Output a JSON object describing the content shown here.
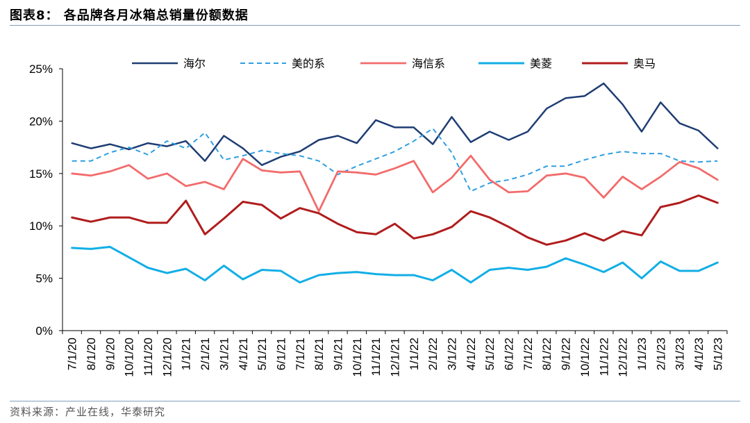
{
  "figure": {
    "title": "图表8：  各品牌各月冰箱总销量份额数据",
    "source": "资料来源：产业在线，华泰研究"
  },
  "chart_data": {
    "type": "line",
    "title": "",
    "xlabel": "",
    "ylabel": "",
    "ylim": [
      0,
      25
    ],
    "y_ticks": [
      "0%",
      "5%",
      "10%",
      "15%",
      "20%",
      "25%"
    ],
    "grid": false,
    "legend_position": "top",
    "categories": [
      "7/1/20",
      "8/1/20",
      "9/1/20",
      "10/1/20",
      "11/1/20",
      "12/1/20",
      "1/1/21",
      "2/1/21",
      "3/1/21",
      "4/1/21",
      "5/1/21",
      "6/1/21",
      "7/1/21",
      "8/1/21",
      "9/1/21",
      "10/1/21",
      "11/1/21",
      "12/1/21",
      "1/1/22",
      "2/1/22",
      "3/1/22",
      "4/1/22",
      "5/1/22",
      "6/1/22",
      "7/1/22",
      "8/1/22",
      "9/1/22",
      "10/1/22",
      "11/1/22",
      "12/1/22",
      "1/1/23",
      "2/1/23",
      "3/1/23",
      "4/1/23",
      "5/1/23"
    ],
    "series": [
      {
        "name": "海尔",
        "color": "#1f3d73",
        "dash": "solid",
        "width": 2.5,
        "values": [
          17.9,
          17.4,
          17.8,
          17.3,
          17.9,
          17.6,
          18.1,
          16.2,
          18.6,
          17.4,
          15.8,
          16.6,
          17.1,
          18.2,
          18.6,
          17.9,
          20.1,
          19.4,
          19.4,
          17.8,
          20.4,
          18.0,
          19.0,
          18.2,
          19.0,
          21.2,
          22.2,
          22.4,
          23.6,
          21.6,
          19.0,
          21.8,
          19.8,
          19.1,
          17.4
        ]
      },
      {
        "name": "美的系",
        "color": "#2e9fe0",
        "dash": "dashed",
        "width": 2.0,
        "values": [
          16.2,
          16.2,
          17.0,
          17.5,
          16.8,
          18.1,
          17.4,
          18.9,
          16.3,
          16.7,
          17.2,
          16.9,
          16.7,
          16.2,
          14.9,
          15.7,
          16.4,
          17.1,
          18.1,
          19.3,
          17.0,
          13.3,
          14.1,
          14.4,
          14.9,
          15.7,
          15.7,
          16.3,
          16.8,
          17.1,
          16.9,
          16.9,
          16.2,
          16.1,
          16.2
        ]
      },
      {
        "name": "海信系",
        "color": "#f36b6b",
        "dash": "solid",
        "width": 2.8,
        "values": [
          15.0,
          14.8,
          15.2,
          15.8,
          14.5,
          15.0,
          13.8,
          14.2,
          13.5,
          16.4,
          15.3,
          15.1,
          15.2,
          11.4,
          15.2,
          15.1,
          14.9,
          15.5,
          16.2,
          13.2,
          14.6,
          16.7,
          14.4,
          13.2,
          13.3,
          14.8,
          15.0,
          14.6,
          12.7,
          14.7,
          13.5,
          14.7,
          16.1,
          15.5,
          14.4
        ]
      },
      {
        "name": "美菱",
        "color": "#12aee6",
        "dash": "solid",
        "width": 3.0,
        "values": [
          7.9,
          7.8,
          8.0,
          7.0,
          6.0,
          5.5,
          5.9,
          4.8,
          6.2,
          4.9,
          5.8,
          5.7,
          4.6,
          5.3,
          5.5,
          5.6,
          5.4,
          5.3,
          5.3,
          4.8,
          5.8,
          4.6,
          5.8,
          6.0,
          5.8,
          6.1,
          6.9,
          6.3,
          5.6,
          6.5,
          5.0,
          6.6,
          5.7,
          5.7,
          6.5
        ]
      },
      {
        "name": "奥马",
        "color": "#b01c1c",
        "dash": "solid",
        "width": 3.0,
        "values": [
          10.8,
          10.4,
          10.8,
          10.8,
          10.3,
          10.3,
          12.4,
          9.2,
          10.7,
          12.3,
          12.0,
          10.7,
          11.7,
          11.2,
          10.2,
          9.4,
          9.2,
          10.2,
          8.8,
          9.2,
          9.9,
          11.4,
          10.8,
          9.9,
          8.9,
          8.2,
          8.6,
          9.3,
          8.6,
          9.5,
          9.1,
          11.8,
          12.2,
          12.9,
          12.2
        ]
      }
    ]
  }
}
